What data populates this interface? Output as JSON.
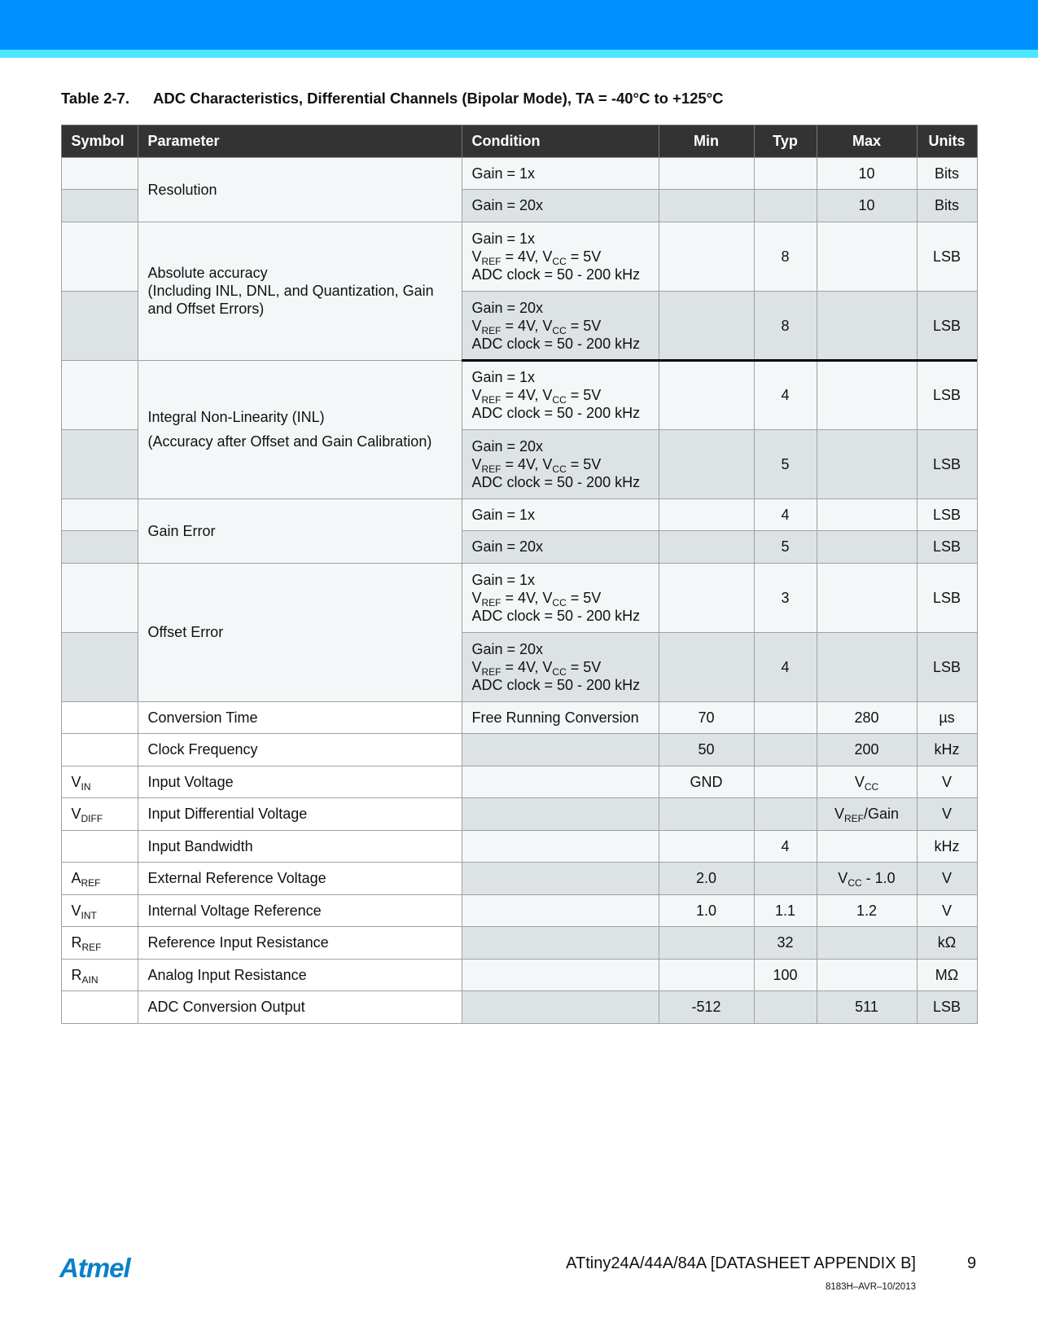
{
  "header_colors": {
    "primary": "#0090ff",
    "secondary": "#4ee6ff"
  },
  "table": {
    "number": "Table 2-7.",
    "caption": "ADC Characteristics, Differential Channels (Bipolar Mode), TA = -40°C to +125°C",
    "columns": [
      "Symbol",
      "Parameter",
      "Condition",
      "Min",
      "Typ",
      "Max",
      "Units"
    ],
    "groups": [
      {
        "symbol": "",
        "parameter": [
          "Resolution"
        ],
        "rows": [
          {
            "condition": [
              "Gain = 1x"
            ],
            "min": "",
            "typ": "",
            "max": "10",
            "units": "Bits"
          },
          {
            "condition": [
              "Gain = 20x"
            ],
            "min": "",
            "typ": "",
            "max": "10",
            "units": "Bits"
          }
        ]
      },
      {
        "symbol": "",
        "parameter": [
          "Absolute accuracy",
          "(Including INL, DNL, and Quantization, Gain",
          "and Offset Errors)"
        ],
        "rows": [
          {
            "condition": [
              "Gain = 1x",
              "V_{REF} = 4V, V_{CC} = 5V",
              "ADC clock = 50 - 200 kHz"
            ],
            "min": "",
            "typ": "8",
            "max": "",
            "units": "LSB"
          },
          {
            "condition": [
              "Gain = 20x",
              "V_{REF} = 4V, V_{CC} = 5V",
              "ADC clock = 50 - 200 kHz"
            ],
            "min": "",
            "typ": "8",
            "max": "",
            "units": "LSB"
          }
        ]
      },
      {
        "symbol": "",
        "parameter": [
          "Integral Non-Linearity (INL)",
          "(Accuracy after Offset and Gain Calibration)"
        ],
        "rows": [
          {
            "condition": [
              "Gain = 1x",
              "V_{REF} = 4V, V_{CC} = 5V",
              "ADC clock = 50 - 200 kHz"
            ],
            "min": "",
            "typ": "4",
            "max": "",
            "units": "LSB"
          },
          {
            "condition": [
              "Gain = 20x",
              "V_{REF} = 4V, V_{CC} = 5V",
              "ADC clock = 50 - 200 kHz"
            ],
            "min": "",
            "typ": "5",
            "max": "",
            "units": "LSB"
          }
        ]
      },
      {
        "symbol": "",
        "parameter": [
          "Gain Error"
        ],
        "rows": [
          {
            "condition": [
              "Gain =   1x"
            ],
            "min": "",
            "typ": "4",
            "max": "",
            "units": "LSB"
          },
          {
            "condition": [
              "Gain = 20x"
            ],
            "min": "",
            "typ": "5",
            "max": "",
            "units": "LSB"
          }
        ]
      },
      {
        "symbol": "",
        "parameter": [
          "Offset Error"
        ],
        "rows": [
          {
            "condition": [
              "Gain = 1x",
              "V_{REF} = 4V, V_{CC} = 5V",
              "ADC clock = 50 - 200 kHz"
            ],
            "min": "",
            "typ": "3",
            "max": "",
            "units": "LSB"
          },
          {
            "condition": [
              "Gain = 20x",
              "V_{REF} = 4V, V_{CC} = 5V",
              "ADC clock = 50 - 200 kHz"
            ],
            "min": "",
            "typ": "4",
            "max": "",
            "units": "LSB"
          }
        ]
      },
      {
        "symbol": "",
        "parameter": [
          "Conversion Time"
        ],
        "rows": [
          {
            "condition": [
              "Free Running Conversion"
            ],
            "min": "70",
            "typ": "",
            "max": "280",
            "units": "µs"
          }
        ]
      },
      {
        "symbol": "",
        "parameter": [
          "Clock Frequency"
        ],
        "rows": [
          {
            "condition": [
              ""
            ],
            "min": "50",
            "typ": "",
            "max": "200",
            "units": "kHz"
          }
        ]
      },
      {
        "symbol": "V_{IN}",
        "parameter": [
          "Input Voltage"
        ],
        "rows": [
          {
            "condition": [
              ""
            ],
            "min": "GND",
            "typ": "",
            "max": "V_{CC}",
            "units": "V"
          }
        ]
      },
      {
        "symbol": "V_{DIFF}",
        "parameter": [
          "Input Differential Voltage"
        ],
        "rows": [
          {
            "condition": [
              ""
            ],
            "min": "",
            "typ": "",
            "max": "V_{REF}/Gain",
            "units": "V"
          }
        ]
      },
      {
        "symbol": "",
        "parameter": [
          "Input Bandwidth"
        ],
        "rows": [
          {
            "condition": [
              ""
            ],
            "min": "",
            "typ": "4",
            "max": "",
            "units": "kHz"
          }
        ]
      },
      {
        "symbol": "A_{REF}",
        "parameter": [
          "External Reference Voltage"
        ],
        "rows": [
          {
            "condition": [
              ""
            ],
            "min": "2.0",
            "typ": "",
            "max": "V_{CC} - 1.0",
            "units": "V"
          }
        ]
      },
      {
        "symbol": "V_{INT}",
        "parameter": [
          "Internal Voltage Reference"
        ],
        "rows": [
          {
            "condition": [
              ""
            ],
            "min": "1.0",
            "typ": "1.1",
            "max": "1.2",
            "units": "V"
          }
        ]
      },
      {
        "symbol": "R_{REF}",
        "parameter": [
          "Reference Input Resistance"
        ],
        "rows": [
          {
            "condition": [
              ""
            ],
            "min": "",
            "typ": "32",
            "max": "",
            "units": "kΩ"
          }
        ]
      },
      {
        "symbol": "R_{AIN}",
        "parameter": [
          "Analog Input Resistance"
        ],
        "rows": [
          {
            "condition": [
              ""
            ],
            "min": "",
            "typ": "100",
            "max": "",
            "units": "MΩ"
          }
        ]
      },
      {
        "symbol": "",
        "parameter": [
          "ADC Conversion Output"
        ],
        "rows": [
          {
            "condition": [
              ""
            ],
            "min": "-512",
            "typ": "",
            "max": "511",
            "units": "LSB"
          }
        ]
      }
    ]
  },
  "footer": {
    "logo": "Atmel",
    "logo_color": "#0a80c8",
    "document_title": "ATtiny24A/44A/84A [DATASHEET APPENDIX B]",
    "page_number": "9",
    "doc_code": "8183H–AVR–10/2013"
  }
}
